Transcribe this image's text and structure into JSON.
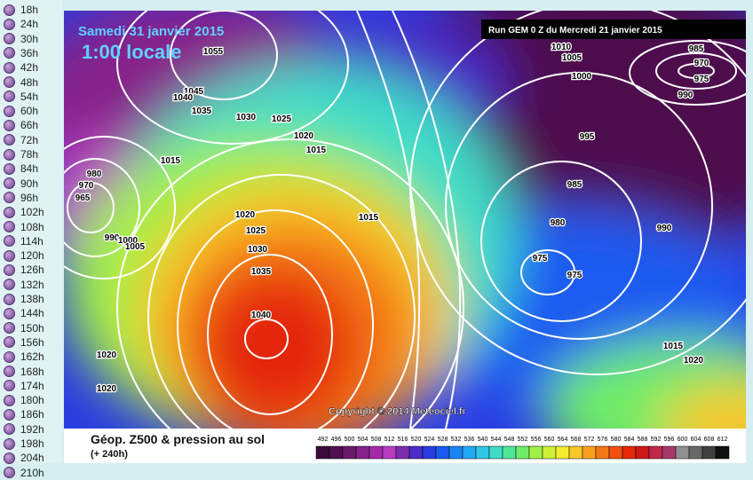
{
  "sidebar": {
    "items": [
      "18h",
      "24h",
      "30h",
      "36h",
      "42h",
      "48h",
      "54h",
      "60h",
      "66h",
      "72h",
      "78h",
      "84h",
      "90h",
      "96h",
      "102h",
      "108h",
      "114h",
      "120h",
      "126h",
      "132h",
      "138h",
      "144h",
      "150h",
      "156h",
      "162h",
      "168h",
      "174h",
      "180h",
      "186h",
      "192h",
      "198h",
      "204h",
      "210h"
    ]
  },
  "map": {
    "date": "Samedi 31 janvier 2015",
    "time": "1:00 locale",
    "run": "Run GEM 0 Z du Mercredi 21 janvier 2015",
    "copyright": "Copyright © 2014 Meteociel.fr",
    "isobar_labels": [
      "1055",
      "1045",
      "1040",
      "1035",
      "1030",
      "1025",
      "1020",
      "1015",
      "1015",
      "980",
      "970",
      "965",
      "1020",
      "1025",
      "1030",
      "1035",
      "1040",
      "1015",
      "1020",
      "1020",
      "1010",
      "1005",
      "1000",
      "995",
      "985",
      "980",
      "975",
      "975",
      "990",
      "985",
      "970",
      "975",
      "990",
      "1015",
      "1020",
      "990",
      "1000",
      "1005"
    ]
  },
  "legend": {
    "title": "Géop. Z500 & pression au sol",
    "subtitle": "(+ 240h)",
    "scale": [
      492,
      496,
      500,
      504,
      508,
      512,
      516,
      520,
      524,
      528,
      532,
      536,
      540,
      544,
      548,
      552,
      556,
      560,
      564,
      568,
      572,
      576,
      580,
      584,
      588,
      592,
      596,
      600,
      604,
      608,
      612
    ],
    "colors": [
      "#3a0a3a",
      "#4e104e",
      "#6a1a6a",
      "#86208a",
      "#a22aa8",
      "#b83cc0",
      "#7a2cb0",
      "#4a2cc8",
      "#2a3ce0",
      "#1a5af0",
      "#1a84f4",
      "#22aaf4",
      "#30c8e8",
      "#40dcc8",
      "#50e69a",
      "#70ec68",
      "#a0f048",
      "#d0f038",
      "#f4ec30",
      "#f8c828",
      "#f8a020",
      "#f47818",
      "#f05010",
      "#e42808",
      "#d01818",
      "#c02848",
      "#a83868",
      "#909090",
      "#686868",
      "#404040",
      "#101010"
    ]
  }
}
